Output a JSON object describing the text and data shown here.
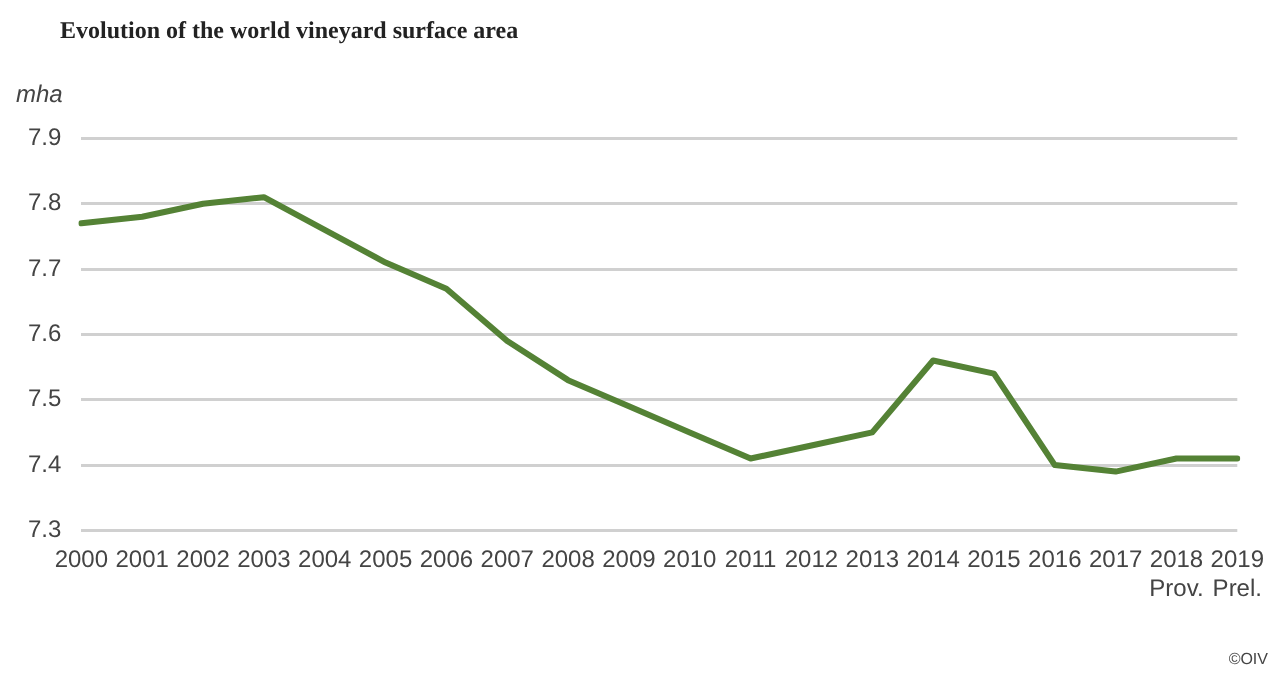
{
  "chart_data": {
    "type": "line",
    "title": "Evolution of the world vineyard surface area",
    "ylabel": "mha",
    "categories": [
      "2000",
      "2001",
      "2002",
      "2003",
      "2004",
      "2005",
      "2006",
      "2007",
      "2008",
      "2009",
      "2010",
      "2011",
      "2012",
      "2013",
      "2014",
      "2015",
      "2016",
      "2017",
      "2018\nProv.",
      "2019\nPrel."
    ],
    "series": [
      {
        "color": "#548235",
        "values": [
          7.77,
          7.78,
          7.8,
          7.81,
          7.76,
          7.71,
          7.67,
          7.59,
          7.53,
          7.49,
          7.45,
          7.41,
          7.43,
          7.45,
          7.56,
          7.54,
          7.4,
          7.39,
          7.41,
          7.41
        ]
      }
    ],
    "ylim": [
      7.3,
      7.9
    ],
    "yticks": [
      7.3,
      7.4,
      7.5,
      7.6,
      7.7,
      7.8,
      7.9
    ],
    "grid": "y",
    "legend": false,
    "marker": "none",
    "line_style": "solid",
    "annotations": [
      "©OIV"
    ]
  }
}
